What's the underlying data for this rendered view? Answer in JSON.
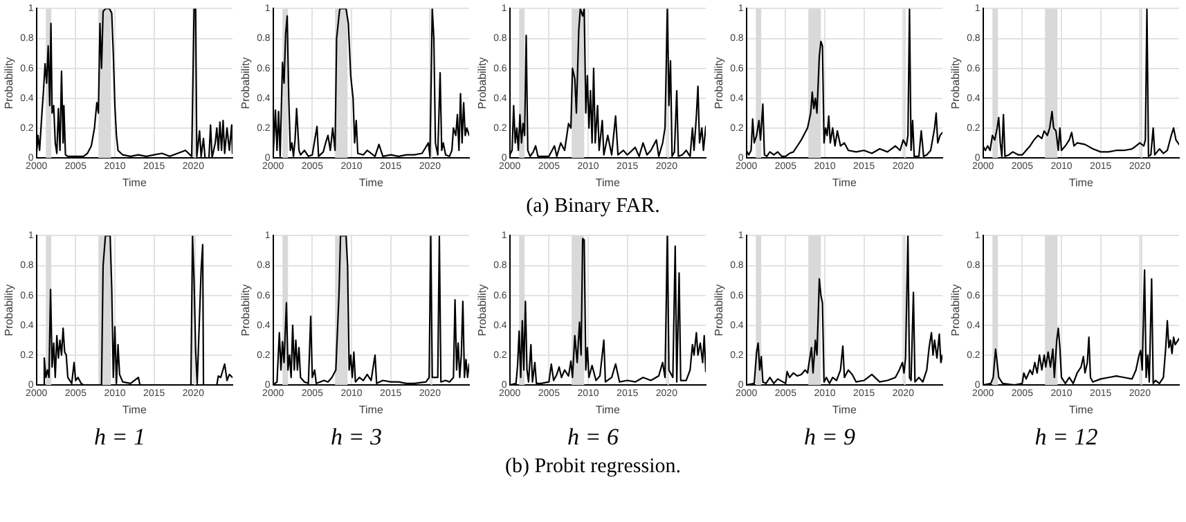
{
  "chart_data": [
    {
      "type": "line",
      "xlabel": "Time",
      "ylabel": "Probability",
      "xlim": [
        2000,
        2025
      ],
      "ylim": [
        0,
        1
      ],
      "xticks": [
        2000,
        2005,
        2010,
        2015,
        2020
      ],
      "yticks": [
        0,
        0.2,
        0.4,
        0.6,
        0.8,
        1
      ],
      "grid": true,
      "bands": [
        {
          "axis": "x",
          "from": 2001.2,
          "to": 2001.9,
          "color": "#d9d9d9"
        },
        {
          "axis": "x",
          "from": 2007.9,
          "to": 2009.5,
          "color": "#d9d9d9"
        },
        {
          "axis": "x",
          "from": 2020.1,
          "to": 2020.3,
          "color": "#d9d9d9"
        }
      ],
      "series": [
        {
          "color": "#000000",
          "x": [
            2000,
            2000.2,
            2000.4,
            2000.7,
            2000.9,
            2001.1,
            2001.3,
            2001.5,
            2001.7,
            2001.85,
            2002,
            2002.2,
            2002.4,
            2002.6,
            2002.8,
            2003,
            2003.2,
            2003.4,
            2003.5,
            2003.7,
            2004,
            2005,
            2006,
            2006.5,
            2007,
            2007.4,
            2007.7,
            2007.9,
            2008.1,
            2008.3,
            2008.5,
            2008.8,
            2009.3,
            2009.6,
            2009.8,
            2010,
            2010.2,
            2010.4,
            2011,
            2012,
            2013,
            2014,
            2015,
            2016,
            2017,
            2018,
            2019,
            2019.8,
            2020.1,
            2020.3,
            2020.45,
            2020.8,
            2021,
            2021.3,
            2021.5,
            2022,
            2022.2,
            2022.4,
            2022.8,
            2023,
            2023.2,
            2023.4,
            2023.6,
            2023.8,
            2024,
            2024.3,
            2024.6,
            2024.9,
            2025
          ],
          "values": [
            0.02,
            0.15,
            0.05,
            0.3,
            0.45,
            0.63,
            0.5,
            0.75,
            0.35,
            0.9,
            0.3,
            0.35,
            0.1,
            0.03,
            0.33,
            0.05,
            0.58,
            0.1,
            0.35,
            0.02,
            0.01,
            0.01,
            0.01,
            0.03,
            0.08,
            0.2,
            0.37,
            0.3,
            0.9,
            0.6,
            0.98,
            1,
            1,
            0.97,
            0.7,
            0.35,
            0.15,
            0.05,
            0.02,
            0.01,
            0.02,
            0.01,
            0.02,
            0.03,
            0.01,
            0.03,
            0.05,
            0.01,
            1,
            1,
            0.01,
            0.18,
            0.01,
            0.13,
            0,
            0,
            0.22,
            0,
            0.1,
            0.2,
            0.05,
            0.24,
            0.05,
            0.25,
            0.03,
            0.2,
            0.05,
            0.22,
            0.03
          ]
        }
      ]
    },
    {
      "type": "line",
      "xlabel": "Time",
      "ylabel": "Probability",
      "xlim": [
        2000,
        2025
      ],
      "ylim": [
        0,
        1
      ],
      "xticks": [
        2000,
        2005,
        2010,
        2015,
        2020
      ],
      "yticks": [
        0,
        0.2,
        0.4,
        0.6,
        0.8,
        1
      ],
      "grid": true,
      "bands": [
        {
          "axis": "x",
          "from": 2001.2,
          "to": 2001.9,
          "color": "#d9d9d9"
        },
        {
          "axis": "x",
          "from": 2007.9,
          "to": 2009.5,
          "color": "#d9d9d9"
        },
        {
          "axis": "x",
          "from": 2020.1,
          "to": 2020.3,
          "color": "#d9d9d9"
        }
      ],
      "series": [
        {
          "color": "#000000",
          "x": [
            2000,
            2000.3,
            2000.5,
            2000.7,
            2000.9,
            2001.2,
            2001.4,
            2001.6,
            2001.8,
            2002,
            2002.2,
            2002.4,
            2002.6,
            2002.8,
            2003,
            2003.3,
            2003.5,
            2004,
            2004.5,
            2005,
            2005.6,
            2005.8,
            2006.4,
            2006.7,
            2007,
            2007.3,
            2007.6,
            2007.9,
            2008.1,
            2008.5,
            2009.3,
            2009.6,
            2009.9,
            2010.2,
            2010.4,
            2010.6,
            2010.8,
            2011.5,
            2012,
            2013,
            2013.5,
            2014,
            2015,
            2016,
            2017,
            2018,
            2019,
            2019.8,
            2020,
            2020.3,
            2020.5,
            2020.7,
            2021,
            2021.3,
            2021.5,
            2021.7,
            2022,
            2022.5,
            2022.8,
            2023,
            2023.3,
            2023.5,
            2023.7,
            2023.9,
            2024.1,
            2024.3,
            2024.5,
            2024.7,
            2025
          ],
          "values": [
            0.01,
            0.32,
            0.05,
            0.31,
            0.01,
            0.64,
            0.5,
            0.83,
            0.95,
            0.4,
            0.05,
            0.1,
            0.01,
            0.12,
            0.33,
            0.05,
            0.02,
            0.05,
            0.01,
            0.02,
            0.21,
            0.01,
            0.04,
            0.1,
            0.15,
            0.05,
            0.2,
            0.05,
            0.8,
            1,
            1,
            0.9,
            0.55,
            0.4,
            0.1,
            0.25,
            0.03,
            0.02,
            0.05,
            0.01,
            0.09,
            0.01,
            0.02,
            0.01,
            0.02,
            0.02,
            0.03,
            0.1,
            0.01,
            1,
            0.8,
            0.1,
            0.02,
            0.57,
            0.05,
            0.1,
            0.02,
            0.01,
            0.05,
            0.2,
            0.15,
            0.29,
            0.05,
            0.43,
            0.1,
            0.37,
            0.15,
            0.2,
            0.15
          ]
        }
      ]
    },
    {
      "type": "line",
      "xlabel": "Time",
      "ylabel": "Probability",
      "xlim": [
        2000,
        2025
      ],
      "ylim": [
        0,
        1
      ],
      "xticks": [
        2000,
        2005,
        2010,
        2015,
        2020
      ],
      "yticks": [
        0,
        0.2,
        0.4,
        0.6,
        0.8,
        1
      ],
      "grid": true,
      "bands": [
        {
          "axis": "x",
          "from": 2001.2,
          "to": 2001.9,
          "color": "#d9d9d9"
        },
        {
          "axis": "x",
          "from": 2007.9,
          "to": 2009.5,
          "color": "#d9d9d9"
        },
        {
          "axis": "x",
          "from": 2020.1,
          "to": 2020.3,
          "color": "#d9d9d9"
        }
      ],
      "series": [
        {
          "color": "#000000",
          "x": [
            2000,
            2000.3,
            2000.5,
            2000.7,
            2000.9,
            2001.1,
            2001.3,
            2001.5,
            2001.7,
            2001.9,
            2002.1,
            2002.3,
            2002.6,
            2003,
            2003.3,
            2003.6,
            2004,
            2005,
            2005.7,
            2006,
            2006.5,
            2007,
            2007.5,
            2007.8,
            2008,
            2008.3,
            2008.5,
            2008.8,
            2009,
            2009.3,
            2009.5,
            2009.7,
            2009.9,
            2010.1,
            2010.3,
            2010.5,
            2010.7,
            2010.9,
            2011.2,
            2011.4,
            2011.8,
            2012,
            2012.5,
            2013,
            2013.5,
            2013.8,
            2014.5,
            2015,
            2016,
            2016.5,
            2017,
            2017.5,
            2018,
            2018.7,
            2019,
            2019.5,
            2019.8,
            2020.1,
            2020.3,
            2020.5,
            2020.7,
            2021,
            2021.3,
            2021.5,
            2022,
            2022.5,
            2023,
            2023.3,
            2023.5,
            2023.8,
            2024,
            2024.2,
            2024.5,
            2024.7,
            2025
          ],
          "values": [
            0.02,
            0.05,
            0.35,
            0.1,
            0.2,
            0.05,
            0.29,
            0.1,
            0.23,
            0.15,
            0.82,
            0.05,
            0.01,
            0.04,
            0.08,
            0.01,
            0.01,
            0.01,
            0.08,
            0.01,
            0.1,
            0.05,
            0.23,
            0.2,
            0.6,
            0.53,
            0.3,
            0.85,
            1,
            0.95,
            1,
            0.3,
            0.55,
            0.2,
            0.45,
            0.1,
            0.6,
            0.1,
            0.35,
            0.05,
            0.25,
            0.02,
            0.15,
            0.02,
            0.28,
            0.02,
            0.05,
            0.02,
            0.07,
            0.01,
            0.1,
            0.02,
            0.05,
            0.12,
            0.01,
            0.1,
            0.2,
            1,
            0.35,
            0.65,
            0.01,
            0.04,
            0.45,
            0.01,
            0.02,
            0.05,
            0.01,
            0.2,
            0.05,
            0.28,
            0.48,
            0.1,
            0.2,
            0.05,
            0.21
          ]
        }
      ]
    },
    {
      "type": "line",
      "xlabel": "Time",
      "ylabel": "Probability",
      "xlim": [
        2000,
        2025
      ],
      "ylim": [
        0,
        1
      ],
      "xticks": [
        2000,
        2005,
        2010,
        2015,
        2020
      ],
      "yticks": [
        0,
        0.2,
        0.4,
        0.6,
        0.8,
        1
      ],
      "grid": true,
      "bands": [
        {
          "axis": "x",
          "from": 2001.2,
          "to": 2001.9,
          "color": "#d9d9d9"
        },
        {
          "axis": "x",
          "from": 2007.9,
          "to": 2009.5,
          "color": "#d9d9d9"
        },
        {
          "axis": "x",
          "from": 2020.1,
          "to": 2020.3,
          "color": "#d9d9d9"
        }
      ],
      "series": [
        {
          "color": "#000000",
          "x": [
            2000,
            2000.3,
            2000.6,
            2000.8,
            2001,
            2001.3,
            2001.6,
            2001.8,
            2002.1,
            2002.3,
            2002.6,
            2003,
            2003.5,
            2004,
            2004.5,
            2005,
            2005.5,
            2006,
            2006.5,
            2007,
            2007.5,
            2007.8,
            2008.2,
            2008.4,
            2008.6,
            2008.8,
            2009,
            2009.3,
            2009.5,
            2009.7,
            2009.9,
            2010.1,
            2010.3,
            2010.5,
            2010.7,
            2011,
            2011.3,
            2011.6,
            2012,
            2012.5,
            2013,
            2014,
            2015,
            2016,
            2017,
            2018,
            2019,
            2019.6,
            2020,
            2020.4,
            2020.6,
            2020.8,
            2021,
            2021.2,
            2021.4,
            2022,
            2022.3,
            2022.6,
            2023,
            2023.5,
            2024,
            2024.2,
            2024.4,
            2024.7,
            2025
          ],
          "values": [
            0.05,
            0.02,
            0.05,
            0.26,
            0.1,
            0.15,
            0.25,
            0.12,
            0.36,
            0.02,
            0.01,
            0.04,
            0.02,
            0.04,
            0.01,
            0.01,
            0.03,
            0.04,
            0.08,
            0.12,
            0.17,
            0.2,
            0.3,
            0.44,
            0.33,
            0.4,
            0.3,
            0.68,
            0.78,
            0.75,
            0.1,
            0.2,
            0.15,
            0.28,
            0.1,
            0.2,
            0.08,
            0.18,
            0.08,
            0.1,
            0.05,
            0.04,
            0.05,
            0.03,
            0.06,
            0.04,
            0.08,
            0.05,
            0.12,
            0.08,
            0.15,
            1,
            0.05,
            0.25,
            0.01,
            0.01,
            0.18,
            0.01,
            0.02,
            0.05,
            0.2,
            0.3,
            0.1,
            0.15,
            0.17
          ]
        }
      ]
    },
    {
      "type": "line",
      "xlabel": "Time",
      "ylabel": "Probability",
      "xlim": [
        2000,
        2025
      ],
      "ylim": [
        0,
        1
      ],
      "xticks": [
        2000,
        2005,
        2010,
        2015,
        2020
      ],
      "yticks": [
        0,
        0.2,
        0.4,
        0.6,
        0.8,
        1
      ],
      "grid": true,
      "bands": [
        {
          "axis": "x",
          "from": 2001.2,
          "to": 2001.9,
          "color": "#d9d9d9"
        },
        {
          "axis": "x",
          "from": 2007.9,
          "to": 2009.5,
          "color": "#d9d9d9"
        },
        {
          "axis": "x",
          "from": 2020.1,
          "to": 2020.3,
          "color": "#d9d9d9"
        }
      ],
      "series": [
        {
          "color": "#000000",
          "x": [
            2000,
            2000.3,
            2000.6,
            2000.9,
            2001.2,
            2001.5,
            2001.8,
            2002,
            2002.2,
            2002.4,
            2002.6,
            2002.8,
            2003.3,
            2003.8,
            2004.5,
            2005,
            2005.5,
            2006,
            2006.5,
            2007,
            2007.5,
            2007.8,
            2008.2,
            2008.5,
            2008.8,
            2009,
            2009.3,
            2009.6,
            2009.8,
            2010,
            2010.5,
            2011,
            2011.3,
            2011.6,
            2012,
            2013,
            2014,
            2015,
            2016,
            2017,
            2018,
            2019,
            2019.5,
            2020,
            2020.5,
            2020.7,
            2020.9,
            2021.1,
            2021.4,
            2021.7,
            2021.9,
            2022.5,
            2023,
            2023.5,
            2024,
            2024.3,
            2024.6,
            2025
          ],
          "values": [
            0.08,
            0.05,
            0.08,
            0.05,
            0.15,
            0.12,
            0.2,
            0.27,
            0.1,
            0.01,
            0.29,
            0.01,
            0.02,
            0.04,
            0.02,
            0.02,
            0.05,
            0.08,
            0.12,
            0.15,
            0.13,
            0.18,
            0.15,
            0.2,
            0.31,
            0.2,
            0.18,
            0.05,
            0.2,
            0.05,
            0.08,
            0.12,
            0.17,
            0.08,
            0.1,
            0.09,
            0.06,
            0.04,
            0.04,
            0.05,
            0.05,
            0.06,
            0.08,
            0.1,
            0.08,
            0.12,
            1,
            0.01,
            0.02,
            0.2,
            0.02,
            0.06,
            0.03,
            0.05,
            0.15,
            0.2,
            0.12,
            0.09
          ]
        }
      ]
    },
    {
      "type": "other",
      "title": "(a) Binary FAR."
    },
    {
      "type": "line",
      "xlabel": "Time",
      "ylabel": "Probability",
      "annotations": [
        "h = 1"
      ],
      "xlim": [
        2000,
        2025
      ],
      "ylim": [
        0,
        1
      ],
      "xticks": [
        2000,
        2005,
        2010,
        2015,
        2020
      ],
      "yticks": [
        0,
        0.2,
        0.4,
        0.6,
        0.8,
        1
      ],
      "grid": true,
      "bands": [
        {
          "axis": "x",
          "from": 2001.2,
          "to": 2001.9,
          "color": "#d9d9d9"
        },
        {
          "axis": "x",
          "from": 2007.9,
          "to": 2009.5,
          "color": "#d9d9d9"
        },
        {
          "axis": "x",
          "from": 2020.1,
          "to": 2020.3,
          "color": "#d9d9d9"
        }
      ],
      "series": [
        {
          "color": "#000000",
          "x": [
            2000,
            2000.9,
            2001,
            2001.2,
            2001.4,
            2001.6,
            2001.8,
            2002,
            2002.2,
            2002.4,
            2002.6,
            2002.8,
            2003,
            2003.2,
            2003.4,
            2003.6,
            2003.8,
            2004,
            2004.5,
            2004.8,
            2005,
            2005.3,
            2005.7,
            2006,
            2008.3,
            2008.5,
            2008.8,
            2009.4,
            2009.6,
            2009.8,
            2010,
            2010.2,
            2010.4,
            2010.6,
            2011,
            2012,
            2013,
            2013.2,
            2019.7,
            2019.9,
            2020.1,
            2020.3,
            2020.5,
            2021,
            2021.2,
            2021.3,
            2023,
            2023.2,
            2023.5,
            2024,
            2024.3,
            2024.6,
            2025
          ],
          "values": [
            0,
            0,
            0.18,
            0.05,
            0.1,
            0.05,
            0.64,
            0.12,
            0.28,
            0.05,
            0.33,
            0.18,
            0.3,
            0.2,
            0.38,
            0.22,
            0.2,
            0.05,
            0.01,
            0.15,
            0.03,
            0.05,
            0.01,
            0,
            0,
            0.8,
            1,
            1,
            0.65,
            0.05,
            0.39,
            0.01,
            0.27,
            0.07,
            0.02,
            0.01,
            0.05,
            0,
            0,
            1,
            0.7,
            0.23,
            0.01,
            0.77,
            0.94,
            0,
            0,
            0.06,
            0.05,
            0.14,
            0.03,
            0.07,
            0.05
          ]
        }
      ]
    },
    {
      "type": "line",
      "xlabel": "Time",
      "ylabel": "Probability",
      "annotations": [
        "h = 3"
      ],
      "xlim": [
        2000,
        2025
      ],
      "ylim": [
        0,
        1
      ],
      "xticks": [
        2000,
        2005,
        2010,
        2015,
        2020
      ],
      "yticks": [
        0,
        0.2,
        0.4,
        0.6,
        0.8,
        1
      ],
      "grid": true,
      "bands": [
        {
          "axis": "x",
          "from": 2001.2,
          "to": 2001.9,
          "color": "#d9d9d9"
        },
        {
          "axis": "x",
          "from": 2007.9,
          "to": 2009.5,
          "color": "#d9d9d9"
        },
        {
          "axis": "x",
          "from": 2020.1,
          "to": 2020.3,
          "color": "#d9d9d9"
        }
      ],
      "series": [
        {
          "color": "#000000",
          "x": [
            2000,
            2000.5,
            2000.8,
            2001,
            2001.2,
            2001.4,
            2001.7,
            2001.9,
            2002.1,
            2002.3,
            2002.5,
            2002.7,
            2002.9,
            2003.1,
            2003.3,
            2003.5,
            2004,
            2004.5,
            2004.8,
            2005,
            2005.3,
            2005.5,
            2006,
            2006.5,
            2007,
            2007.5,
            2008,
            2008.4,
            2008.6,
            2009.3,
            2009.5,
            2009.7,
            2009.9,
            2010.1,
            2010.3,
            2010.5,
            2011,
            2011.5,
            2012,
            2012.5,
            2013,
            2013.2,
            2014,
            2015,
            2016,
            2017,
            2018,
            2019.5,
            2019.9,
            2020.1,
            2020.3,
            2021,
            2021.2,
            2021.4,
            2022,
            2022.5,
            2023,
            2023.2,
            2023.4,
            2023.6,
            2023.8,
            2024,
            2024.2,
            2024.4,
            2024.6,
            2024.8,
            2025
          ],
          "values": [
            0,
            0.02,
            0.35,
            0.1,
            0.29,
            0.15,
            0.55,
            0.1,
            0.2,
            0.05,
            0.4,
            0.1,
            0.3,
            0.1,
            0.25,
            0.05,
            0.02,
            0.01,
            0.46,
            0.05,
            0.1,
            0.01,
            0.02,
            0.03,
            0.02,
            0.05,
            0.1,
            0.6,
            1,
            1,
            0.8,
            0.1,
            0.2,
            0.05,
            0.22,
            0.02,
            0.05,
            0.03,
            0.07,
            0.03,
            0.2,
            0.01,
            0.03,
            0.02,
            0.02,
            0.01,
            0.01,
            0.02,
            0.05,
            1,
            0.05,
            0.05,
            1,
            0.02,
            0.03,
            0.02,
            0.05,
            0.57,
            0.1,
            0.28,
            0.05,
            0.2,
            0.56,
            0.05,
            0.17,
            0.05,
            0.14
          ]
        }
      ]
    },
    {
      "type": "line",
      "xlabel": "Time",
      "ylabel": "Probability",
      "annotations": [
        "h = 6"
      ],
      "xlim": [
        2000,
        2025
      ],
      "ylim": [
        0,
        1
      ],
      "xticks": [
        2000,
        2005,
        2010,
        2015,
        2020
      ],
      "yticks": [
        0,
        0.2,
        0.4,
        0.6,
        0.8,
        1
      ],
      "grid": true,
      "bands": [
        {
          "axis": "x",
          "from": 2001.2,
          "to": 2001.9,
          "color": "#d9d9d9"
        },
        {
          "axis": "x",
          "from": 2007.9,
          "to": 2009.5,
          "color": "#d9d9d9"
        },
        {
          "axis": "x",
          "from": 2020.1,
          "to": 2020.3,
          "color": "#d9d9d9"
        }
      ],
      "series": [
        {
          "color": "#000000",
          "x": [
            2000,
            2000.8,
            2001,
            2001.2,
            2001.4,
            2001.6,
            2001.8,
            2002,
            2002.2,
            2002.4,
            2002.7,
            2002.9,
            2003.2,
            2003.4,
            2004,
            2005,
            2005.3,
            2005.6,
            2006,
            2006.3,
            2006.6,
            2007,
            2007.5,
            2007.8,
            2008,
            2008.3,
            2008.6,
            2008.9,
            2009.1,
            2009.3,
            2009.5,
            2009.7,
            2009.9,
            2010.1,
            2010.5,
            2011,
            2011.5,
            2012,
            2012.2,
            2013,
            2013.5,
            2014,
            2015,
            2016,
            2017,
            2018,
            2019,
            2019.5,
            2019.8,
            2020.1,
            2020.3,
            2020.8,
            2021.1,
            2021.3,
            2021.6,
            2021.8,
            2022.5,
            2023,
            2023.3,
            2023.5,
            2023.8,
            2024,
            2024.3,
            2024.6,
            2024.8,
            2025
          ],
          "values": [
            0,
            0.01,
            0.13,
            0.36,
            0.05,
            0.43,
            0.1,
            0.56,
            0.1,
            0.02,
            0.27,
            0.02,
            0.15,
            0.01,
            0.01,
            0.02,
            0.14,
            0.03,
            0.07,
            0.12,
            0.05,
            0.1,
            0.06,
            0.16,
            0.05,
            0.33,
            0.15,
            0.42,
            0.2,
            0.98,
            0.97,
            0.1,
            0.25,
            0.05,
            0.13,
            0.03,
            0.06,
            0.3,
            0.02,
            0.05,
            0.14,
            0.02,
            0.03,
            0.02,
            0.05,
            0.03,
            0.06,
            0.15,
            0.05,
            1,
            0.1,
            0.05,
            0.93,
            0.02,
            0.75,
            0.03,
            0.03,
            0.1,
            0.27,
            0.2,
            0.35,
            0.2,
            0.28,
            0.15,
            0.33,
            0.09
          ]
        }
      ]
    },
    {
      "type": "line",
      "xlabel": "Time",
      "ylabel": "Probability",
      "annotations": [
        "h = 9"
      ],
      "xlim": [
        2000,
        2025
      ],
      "ylim": [
        0,
        1
      ],
      "xticks": [
        2000,
        2005,
        2010,
        2015,
        2020
      ],
      "yticks": [
        0,
        0.2,
        0.4,
        0.6,
        0.8,
        1
      ],
      "grid": true,
      "bands": [
        {
          "axis": "x",
          "from": 2001.2,
          "to": 2001.9,
          "color": "#d9d9d9"
        },
        {
          "axis": "x",
          "from": 2007.9,
          "to": 2009.5,
          "color": "#d9d9d9"
        },
        {
          "axis": "x",
          "from": 2020.1,
          "to": 2020.3,
          "color": "#d9d9d9"
        }
      ],
      "series": [
        {
          "color": "#000000",
          "x": [
            2000,
            2001,
            2001.3,
            2001.5,
            2001.7,
            2001.9,
            2002.1,
            2002.5,
            2003,
            2003.5,
            2004,
            2005,
            2005.2,
            2005.5,
            2006,
            2006.5,
            2007,
            2007.5,
            2007.8,
            2008,
            2008.3,
            2008.5,
            2008.8,
            2009,
            2009.3,
            2009.5,
            2009.7,
            2009.9,
            2010.2,
            2010.6,
            2011,
            2011.5,
            2012,
            2012.3,
            2012.5,
            2013,
            2013.5,
            2014,
            2015,
            2016,
            2017,
            2018,
            2019,
            2019.5,
            2019.9,
            2020.1,
            2020.3,
            2020.6,
            2020.8,
            2021,
            2021.3,
            2021.5,
            2022,
            2022.5,
            2023,
            2023.3,
            2023.6,
            2023.8,
            2024,
            2024.3,
            2024.6,
            2024.8,
            2025
          ],
          "values": [
            0,
            0.01,
            0.22,
            0.28,
            0.1,
            0.19,
            0.02,
            0.01,
            0.05,
            0.01,
            0.04,
            0.01,
            0.09,
            0.05,
            0.08,
            0.06,
            0.07,
            0.1,
            0.08,
            0.15,
            0.25,
            0.08,
            0.3,
            0.2,
            0.71,
            0.6,
            0.55,
            0.02,
            0.05,
            0.01,
            0.05,
            0.03,
            0.1,
            0.26,
            0.05,
            0.1,
            0.07,
            0.02,
            0.03,
            0.07,
            0.02,
            0.03,
            0.05,
            0.1,
            0.15,
            0.08,
            0.18,
            1,
            0.05,
            0.03,
            0.62,
            0.02,
            0.05,
            0.02,
            0.1,
            0.25,
            0.35,
            0.2,
            0.3,
            0.18,
            0.34,
            0.15,
            0.2
          ]
        }
      ]
    },
    {
      "type": "line",
      "xlabel": "Time",
      "ylabel": "Probability",
      "annotations": [
        "h = 12"
      ],
      "xlim": [
        2000,
        2025
      ],
      "ylim": [
        0,
        1
      ],
      "xticks": [
        2000,
        2005,
        2010,
        2015,
        2020
      ],
      "yticks": [
        0,
        0.2,
        0.4,
        0.6,
        0.8,
        1
      ],
      "grid": true,
      "bands": [
        {
          "axis": "x",
          "from": 2001.2,
          "to": 2001.9,
          "color": "#d9d9d9"
        },
        {
          "axis": "x",
          "from": 2007.9,
          "to": 2009.5,
          "color": "#d9d9d9"
        },
        {
          "axis": "x",
          "from": 2020.1,
          "to": 2020.3,
          "color": "#d9d9d9"
        }
      ],
      "series": [
        {
          "color": "#000000",
          "x": [
            2000,
            2001,
            2001.3,
            2001.6,
            2001.8,
            2002,
            2002.5,
            2004,
            2005,
            2005.2,
            2005.5,
            2006,
            2006.3,
            2006.6,
            2006.9,
            2007.2,
            2007.5,
            2007.8,
            2008,
            2008.3,
            2008.6,
            2008.9,
            2009.1,
            2009.4,
            2009.6,
            2009.8,
            2010,
            2010.5,
            2011,
            2011.5,
            2012,
            2012.5,
            2012.8,
            2013,
            2013.3,
            2013.5,
            2013.7,
            2014,
            2015,
            2016,
            2017,
            2018,
            2019,
            2019.5,
            2019.9,
            2020.1,
            2020.3,
            2020.6,
            2020.8,
            2021,
            2021.2,
            2021.5,
            2021.7,
            2022,
            2022.5,
            2023,
            2023.3,
            2023.5,
            2023.7,
            2023.9,
            2024.1,
            2024.3,
            2024.5,
            2025
          ],
          "values": [
            0,
            0.01,
            0.05,
            0.24,
            0.15,
            0.05,
            0.01,
            0,
            0.01,
            0.08,
            0.04,
            0.1,
            0.07,
            0.15,
            0.08,
            0.2,
            0.1,
            0.2,
            0.12,
            0.22,
            0.12,
            0.24,
            0.05,
            0.3,
            0.38,
            0.25,
            0.05,
            0.01,
            0.05,
            0.01,
            0.08,
            0.12,
            0.19,
            0.08,
            0.15,
            0.32,
            0.05,
            0.02,
            0.04,
            0.05,
            0.06,
            0.05,
            0.04,
            0.1,
            0.2,
            0.23,
            0.1,
            0.77,
            0.05,
            0.2,
            0.02,
            0.71,
            0.01,
            0.03,
            0.01,
            0.05,
            0.25,
            0.43,
            0.25,
            0.3,
            0.21,
            0.32,
            0.27,
            0.31
          ]
        }
      ]
    },
    {
      "type": "other",
      "title": "(b) Probit regression."
    }
  ]
}
